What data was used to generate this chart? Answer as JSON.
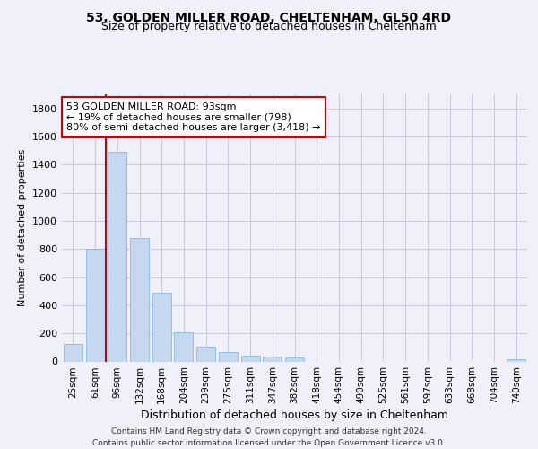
{
  "title1": "53, GOLDEN MILLER ROAD, CHELTENHAM, GL50 4RD",
  "title2": "Size of property relative to detached houses in Cheltenham",
  "xlabel": "Distribution of detached houses by size in Cheltenham",
  "ylabel": "Number of detached properties",
  "categories": [
    "25sqm",
    "61sqm",
    "96sqm",
    "132sqm",
    "168sqm",
    "204sqm",
    "239sqm",
    "275sqm",
    "311sqm",
    "347sqm",
    "382sqm",
    "418sqm",
    "454sqm",
    "490sqm",
    "525sqm",
    "561sqm",
    "597sqm",
    "633sqm",
    "668sqm",
    "704sqm",
    "740sqm"
  ],
  "values": [
    125,
    800,
    1490,
    880,
    490,
    205,
    105,
    65,
    40,
    35,
    30,
    0,
    0,
    0,
    0,
    0,
    0,
    0,
    0,
    0,
    15
  ],
  "bar_color": "#c5d8f0",
  "bar_edge_color": "#7bafd4",
  "vline_color": "#cc0000",
  "annotation_text": "53 GOLDEN MILLER ROAD: 93sqm\n← 19% of detached houses are smaller (798)\n80% of semi-detached houses are larger (3,418) →",
  "annotation_box_facecolor": "#ffffff",
  "annotation_box_edgecolor": "#cc0000",
  "ylim": [
    0,
    1900
  ],
  "yticks": [
    0,
    200,
    400,
    600,
    800,
    1000,
    1200,
    1400,
    1600,
    1800
  ],
  "footer1": "Contains HM Land Registry data © Crown copyright and database right 2024.",
  "footer2": "Contains public sector information licensed under the Open Government Licence v3.0.",
  "bg_color": "#f0f0fa",
  "grid_color": "#c8c8dc"
}
